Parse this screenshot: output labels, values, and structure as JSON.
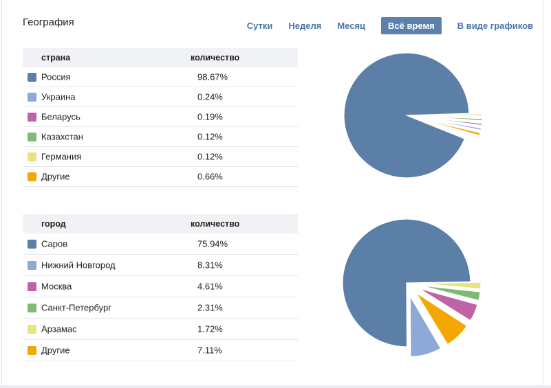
{
  "page": {
    "title": "География"
  },
  "nav": {
    "periods": [
      {
        "label": "Сутки",
        "active": false
      },
      {
        "label": "Неделя",
        "active": false
      },
      {
        "label": "Месяц",
        "active": false
      },
      {
        "label": "Всё время",
        "active": true
      }
    ],
    "view_toggle_label": "В виде графиков",
    "link_color": "#4a76a8",
    "active_bg": "#5b80ab",
    "active_text": "#ffffff"
  },
  "chart_data": [
    {
      "type": "pie",
      "name": "countries",
      "legend_position": "left-table",
      "columns": [
        "страна",
        "количество"
      ],
      "slices": [
        {
          "label": "Россия",
          "value": 98.67,
          "display": "98.67%",
          "color": "#5b7fa7"
        },
        {
          "label": "Украина",
          "value": 0.24,
          "display": "0.24%",
          "color": "#8fa9d6"
        },
        {
          "label": "Беларусь",
          "value": 0.19,
          "display": "0.19%",
          "color": "#bf62a6"
        },
        {
          "label": "Казахстан",
          "value": 0.12,
          "display": "0.12%",
          "color": "#7fba75"
        },
        {
          "label": "Германия",
          "value": 0.12,
          "display": "0.12%",
          "color": "#e9e37f"
        },
        {
          "label": "Другие",
          "value": 0.66,
          "display": "0.66%",
          "color": "#f3a703"
        }
      ]
    },
    {
      "type": "pie",
      "name": "cities",
      "legend_position": "left-table",
      "columns": [
        "город",
        "количество"
      ],
      "slices": [
        {
          "label": "Саров",
          "value": 75.94,
          "display": "75.94%",
          "color": "#5b7fa7"
        },
        {
          "label": "Нижний Новгород",
          "value": 8.31,
          "display": "8.31%",
          "color": "#8fa9d6"
        },
        {
          "label": "Москва",
          "value": 4.61,
          "display": "4.61%",
          "color": "#bf62a6"
        },
        {
          "label": "Санкт-Петербург",
          "value": 2.31,
          "display": "2.31%",
          "color": "#7fba75"
        },
        {
          "label": "Арзамас",
          "value": 1.72,
          "display": "1.72%",
          "color": "#e9e37f"
        },
        {
          "label": "Другие",
          "value": 7.11,
          "display": "7.11%",
          "color": "#f3a703"
        }
      ]
    }
  ]
}
